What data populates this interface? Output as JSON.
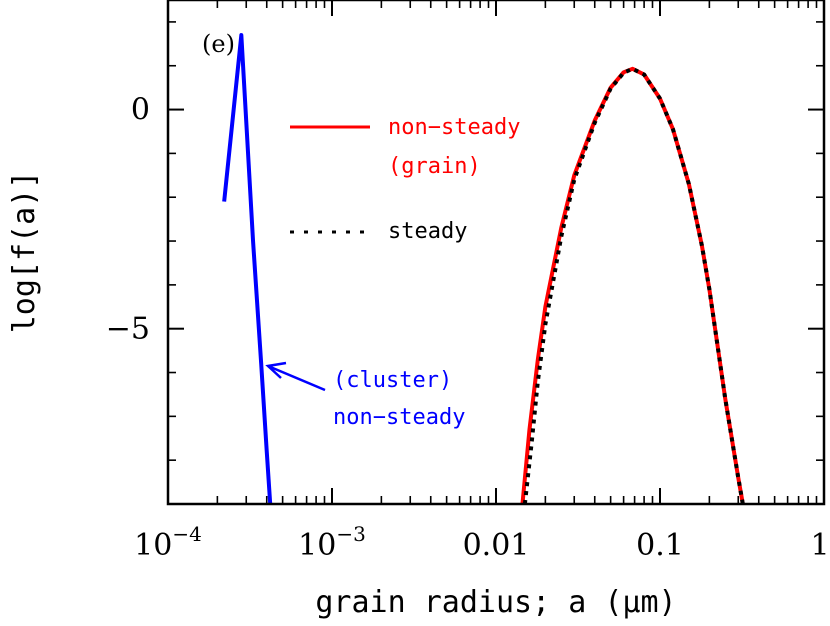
{
  "chart_data": {
    "type": "line",
    "panel_label": "(e)",
    "xlabel": "grain radius; a (μm)",
    "ylabel": "log[f(a)]",
    "x_scale": "log",
    "xlim": [
      0.0001,
      1
    ],
    "ylim": [
      -9,
      2.5
    ],
    "x_ticks": [
      {
        "value": 0.0001,
        "base": "10",
        "exp": "−4"
      },
      {
        "value": 0.001,
        "base": "10",
        "exp": "−3"
      },
      {
        "value": 0.01,
        "text": "0.01"
      },
      {
        "value": 0.1,
        "text": "0.1"
      },
      {
        "value": 1,
        "text": "1"
      }
    ],
    "y_ticks": [
      {
        "value": 0,
        "text": "0"
      },
      {
        "value": -5,
        "text": "−5"
      }
    ],
    "series": [
      {
        "name": "non−steady (grain)",
        "color": "#ff0000",
        "style": "solid",
        "x": [
          0.0145,
          0.016,
          0.018,
          0.02,
          0.025,
          0.03,
          0.04,
          0.05,
          0.06,
          0.068,
          0.08,
          0.1,
          0.12,
          0.15,
          0.18,
          0.2,
          0.25,
          0.3,
          0.32
        ],
        "y": [
          -9.0,
          -7.3,
          -5.7,
          -4.5,
          -2.7,
          -1.5,
          -0.25,
          0.5,
          0.85,
          0.93,
          0.8,
          0.25,
          -0.45,
          -1.7,
          -3.1,
          -4.1,
          -6.6,
          -8.4,
          -9.0
        ]
      },
      {
        "name": "steady",
        "color": "#000000",
        "style": "dotted",
        "x": [
          0.015,
          0.0165,
          0.018,
          0.02,
          0.025,
          0.03,
          0.04,
          0.05,
          0.06,
          0.068,
          0.08,
          0.1,
          0.12,
          0.15,
          0.18,
          0.2,
          0.25,
          0.3,
          0.32
        ],
        "y": [
          -9.0,
          -7.6,
          -6.2,
          -4.9,
          -2.9,
          -1.6,
          -0.3,
          0.48,
          0.84,
          0.93,
          0.8,
          0.25,
          -0.45,
          -1.7,
          -3.1,
          -4.1,
          -6.6,
          -8.4,
          -9.0
        ]
      },
      {
        "name": "(cluster) non−steady",
        "color": "#0000ff",
        "style": "solid",
        "x": [
          0.00022,
          0.00028,
          0.00033,
          0.00037,
          0.0004,
          0.00042
        ],
        "y": [
          -2.1,
          1.7,
          -3.0,
          -5.8,
          -7.8,
          -9.0
        ]
      }
    ],
    "legend": {
      "grain_line1": "non−steady",
      "grain_line2": "(grain)",
      "steady": "steady",
      "cluster_line1": "(cluster)",
      "cluster_line2": "non−steady"
    }
  }
}
